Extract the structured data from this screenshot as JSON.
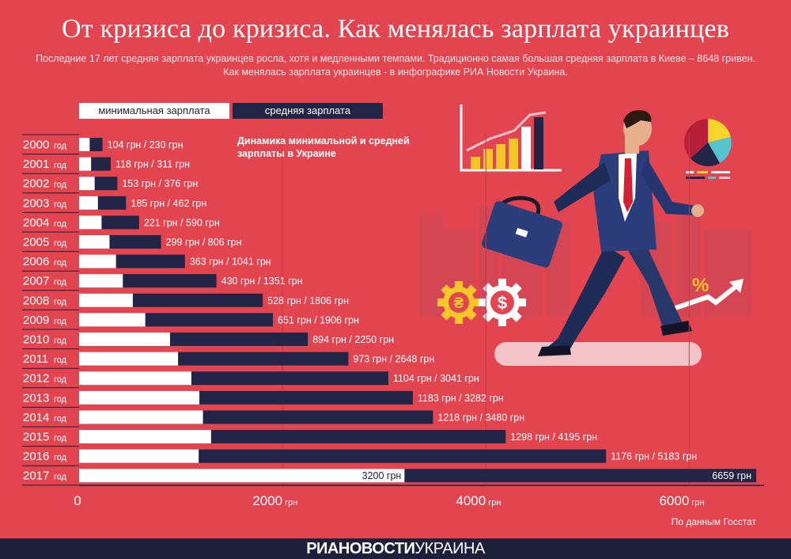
{
  "header": {
    "title": "От кризиса до кризиса. Как менялась зарплата украинцев",
    "subtitle": "Последние 17 лет средняя зарплата украинцев росла, хотя и медленными темпами. Традиционно самая большая средняя зарплата в Киеве – 8648 гривен. Как менялась зарплата украинцев - в инфографике РИА Новости Украина."
  },
  "legend": {
    "min_label": "минимальная зарплата",
    "avg_label": "средняя зарплата"
  },
  "chart_note": "Динамика минимальной и средней зарплаты в Украине",
  "chart_data": {
    "type": "bar",
    "orientation": "horizontal",
    "categories": [
      "2000",
      "2001",
      "2002",
      "2003",
      "2004",
      "2005",
      "2006",
      "2007",
      "2008",
      "2009",
      "2010",
      "2011",
      "2012",
      "2013",
      "2014",
      "2015",
      "2016",
      "2017"
    ],
    "category_suffix": "год",
    "series": [
      {
        "name": "минимальная зарплата",
        "color": "#ffffff",
        "values": [
          104,
          118,
          153,
          185,
          221,
          299,
          363,
          430,
          528,
          651,
          894,
          973,
          1104,
          1183,
          1218,
          1298,
          1176,
          3200
        ]
      },
      {
        "name": "средняя зарплата",
        "color": "#232546",
        "values": [
          230,
          311,
          376,
          462,
          590,
          806,
          1041,
          1351,
          1806,
          1906,
          2250,
          2648,
          3041,
          3282,
          3480,
          4195,
          5183,
          6659
        ]
      }
    ],
    "value_unit": "грн",
    "xlim": [
      0,
      6700
    ],
    "xticks": [
      0,
      2000,
      4000,
      6000
    ],
    "xtick_unit": "грн",
    "grid": true
  },
  "source": "По данным Госстат",
  "footer": {
    "brand_bold": "РИАНОВОСТИ",
    "brand_light": "УКРАИНА"
  },
  "illustration": {
    "currency_icons": [
      "hryvnia-gear-icon",
      "dollar-gear-icon"
    ],
    "percent_sign": "%"
  }
}
